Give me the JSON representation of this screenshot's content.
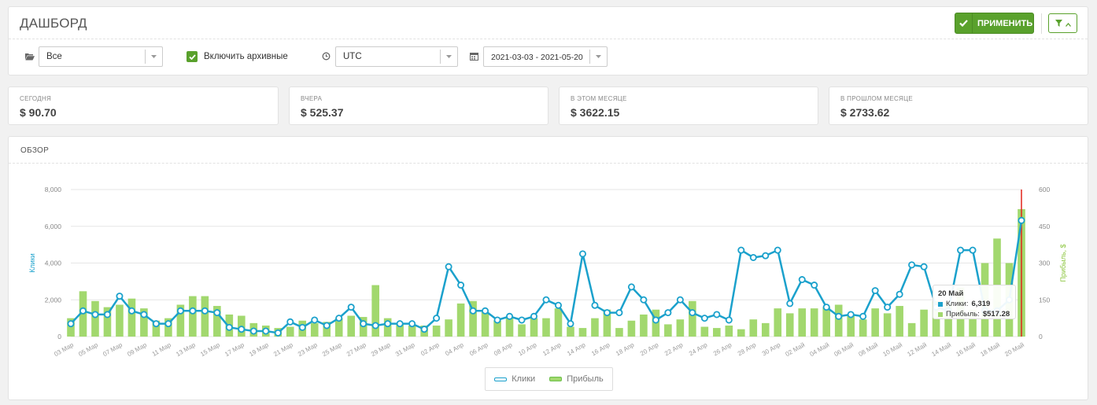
{
  "header": {
    "title": "ДАШБОРД",
    "apply_label": "ПРИМЕНИТЬ"
  },
  "filters": {
    "campaign": "Все",
    "include_archived_label": "Включить архивные",
    "include_archived_checked": true,
    "timezone": "UTC",
    "date_range": "2021-03-03 - 2021-05-20"
  },
  "stats": [
    {
      "caption": "СЕГОДНЯ",
      "value": "$ 90.70"
    },
    {
      "caption": "ВЧЕРА",
      "value": "$ 525.37"
    },
    {
      "caption": "В ЭТОМ МЕСЯЦЕ",
      "value": "$ 3622.15"
    },
    {
      "caption": "В ПРОШЛОМ МЕСЯЦЕ",
      "value": "$ 2733.62"
    }
  ],
  "overview": {
    "title": "ОБЗОР"
  },
  "colors": {
    "accent": "#59a12c",
    "clicks_line": "#1ba1cc",
    "profit_bar": "#a2d86e",
    "hover_line": "#e2231a"
  },
  "tooltip": {
    "date": "20 Май",
    "clicks_label": "Клики:",
    "clicks_value": "6,319",
    "profit_label": "Прибыль:",
    "profit_value": "$517.28"
  },
  "chart_data": {
    "type": "bar",
    "xlabel": "",
    "ylabel": "Клики",
    "ylabel_right": "Прибыль, $",
    "ylim": [
      0,
      8000
    ],
    "ylim_right": [
      0,
      600
    ],
    "yticks": [
      "0",
      "2,000",
      "4,000",
      "6,000",
      "8,000"
    ],
    "yticks_right": [
      "0",
      "150",
      "300",
      "450",
      "600"
    ],
    "x_tick_labels": [
      "03 Мар",
      "05 Мар",
      "07 Мар",
      "09 Мар",
      "11 Мар",
      "13 Мар",
      "15 Мар",
      "17 Мар",
      "19 Мар",
      "21 Мар",
      "23 Мар",
      "25 Мар",
      "27 Мар",
      "29 Мар",
      "31 Мар",
      "02 Апр",
      "04 Апр",
      "06 Апр",
      "08 Апр",
      "10 Апр",
      "12 Апр",
      "14 Апр",
      "16 Апр",
      "18 Апр",
      "20 Апр",
      "22 Апр",
      "24 Апр",
      "26 Апр",
      "28 Апр",
      "30 Апр",
      "02 Май",
      "04 Май",
      "06 Май",
      "08 Май",
      "10 Май",
      "12 Май",
      "14 Май",
      "16 Май",
      "18 Май",
      "20 Май"
    ],
    "legend": "bottom-center",
    "grid": true,
    "hover_index": 78,
    "series": [
      {
        "name": "Клики",
        "type": "line",
        "axis": "left",
        "values": [
          700,
          1400,
          1200,
          1200,
          2200,
          1400,
          1200,
          700,
          700,
          1400,
          1400,
          1400,
          1300,
          500,
          400,
          300,
          300,
          200,
          800,
          500,
          900,
          600,
          1000,
          1600,
          700,
          600,
          700,
          700,
          700,
          400,
          1000,
          3800,
          2800,
          1400,
          1400,
          900,
          1100,
          900,
          1100,
          2000,
          1700,
          700,
          4500,
          1700,
          1300,
          1300,
          2700,
          2000,
          900,
          1300,
          2000,
          1300,
          1000,
          1200,
          900,
          4700,
          4300,
          4400,
          4700,
          1800,
          3100,
          2800,
          1600,
          1100,
          1200,
          1100,
          2500,
          1600,
          2300,
          3900,
          3800,
          1600,
          1400,
          4700,
          4700,
          1400,
          1400,
          2000,
          6319
        ]
      },
      {
        "name": "Прибыль",
        "type": "bar",
        "axis": "right",
        "values": [
          75,
          185,
          145,
          120,
          130,
          155,
          115,
          65,
          75,
          130,
          165,
          165,
          125,
          90,
          85,
          55,
          45,
          35,
          40,
          65,
          55,
          60,
          75,
          85,
          80,
          210,
          75,
          50,
          45,
          45,
          45,
          70,
          135,
          145,
          100,
          65,
          75,
          50,
          75,
          75,
          115,
          40,
          35,
          75,
          110,
          35,
          65,
          90,
          110,
          50,
          70,
          145,
          40,
          35,
          45,
          30,
          70,
          55,
          115,
          95,
          115,
          115,
          120,
          130,
          85,
          70,
          115,
          95,
          125,
          55,
          110,
          145,
          140,
          200,
          110,
          300,
          400,
          300,
          520
        ]
      }
    ]
  }
}
